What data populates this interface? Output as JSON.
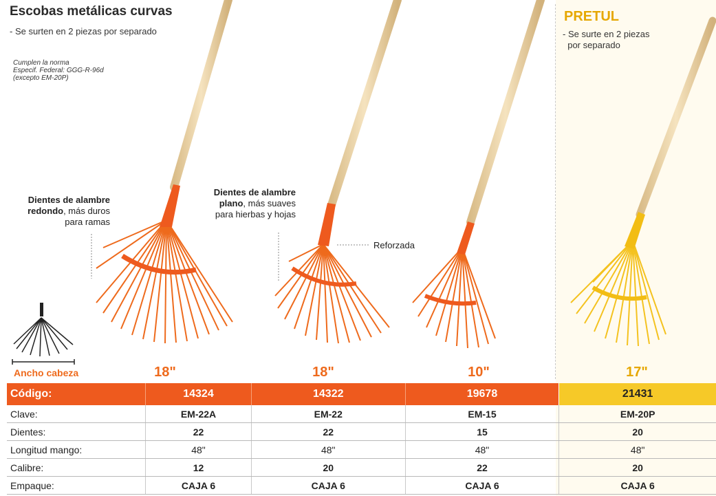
{
  "header": {
    "title": "Escobas metálicas curvas",
    "subtitle": "- Se surten en 2 piezas por separado",
    "norma": [
      "Cumplen la norma",
      "Especif. Federal: GGG-R-96d",
      "(excepto EM-20P)"
    ]
  },
  "pretul": {
    "brand": "PRETUL",
    "note_lines": [
      "- Se surte en 2 piezas",
      "  por separado"
    ]
  },
  "callouts": {
    "round": {
      "bold": "Dientes de alambre redondo",
      "rest": ", más duros para ramas"
    },
    "flat": {
      "bold": "Dientes de alambre plano",
      "rest": ", más suaves para hierbas y hojas"
    },
    "reforzada": "Reforzada"
  },
  "ancho_label": "Ancho cabeza",
  "products": [
    {
      "size": "18\"",
      "codigo": "14324",
      "clave": "EM-22A",
      "dientes": "22",
      "longitud": "48\"",
      "calibre": "12",
      "empaque": "CAJA 6"
    },
    {
      "size": "18\"",
      "codigo": "14322",
      "clave": "EM-22",
      "dientes": "22",
      "longitud": "48\"",
      "calibre": "20",
      "empaque": "CAJA 6"
    },
    {
      "size": "10\"",
      "codigo": "19678",
      "clave": "EM-15",
      "dientes": "15",
      "longitud": "48\"",
      "calibre": "22",
      "empaque": "CAJA 6"
    },
    {
      "size": "17\"",
      "codigo": "21431",
      "clave": "EM-20P",
      "dientes": "20",
      "longitud": "48\"",
      "calibre": "20",
      "empaque": "CAJA 6"
    }
  ],
  "row_labels": {
    "codigo": "Código:",
    "clave": "Clave:",
    "dientes": "Dientes:",
    "longitud": "Longitud mango:",
    "calibre": "Calibre:",
    "empaque": "Empaque:"
  },
  "colors": {
    "orange": "#ee5a1e",
    "orange_text": "#ee6a1c",
    "yellow": "#f6c928",
    "pretul_gold": "#e6a700",
    "handle_wood": "#ecd6a8"
  }
}
